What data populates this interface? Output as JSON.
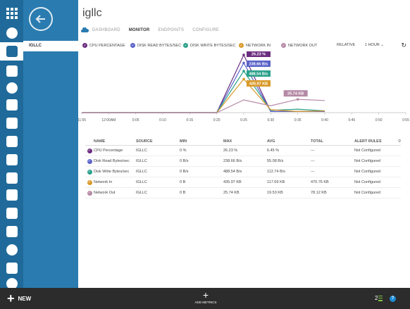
{
  "colors": {
    "rail": "#1f6a9a",
    "subnav": "#2a7bb0",
    "bottombar": "#2c2c2c",
    "cpu": "#6b2d80",
    "read": "#5a62c8",
    "write": "#2aa08a",
    "netin": "#d99a2b",
    "netout": "#b58aa6"
  },
  "rail": {
    "icons": [
      "all-items-icon",
      "web-sites-icon",
      "virtual-machines-icon",
      "mobile-services-icon",
      "cloud-services-icon",
      "sql-databases-icon",
      "storage-icon",
      "hdinsight-icon",
      "media-services-icon",
      "service-bus-icon",
      "visual-studio-icon",
      "cache-icon",
      "biztalk-icon",
      "recovery-services-icon",
      "cdn-icon",
      "settings-icon"
    ]
  },
  "subnav": {
    "item": "IGLLC"
  },
  "page": {
    "title": "igllc"
  },
  "tabs": [
    {
      "label": "DASHBOARD",
      "active": false
    },
    {
      "label": "MONITOR",
      "active": true
    },
    {
      "label": "ENDPOINTS",
      "active": false
    },
    {
      "label": "CONFIGURE",
      "active": false
    }
  ],
  "legend": [
    {
      "label": "CPU PERCENTAGE",
      "color": "#6b2d80"
    },
    {
      "label": "DISK READ BYTES/SEC",
      "color": "#5a62c8"
    },
    {
      "label": "DISK WRITE BYTES/SEC",
      "color": "#2aa08a"
    },
    {
      "label": "NETWORK IN",
      "color": "#d99a2b"
    },
    {
      "label": "NETWORK OUT",
      "color": "#b58aa6"
    }
  ],
  "toolbar": {
    "relative": "RELATIVE",
    "range": "1 HOUR"
  },
  "chart_data": {
    "type": "line",
    "x": [
      "11:55",
      "12:00AM",
      "0:05",
      "0:10",
      "0:15",
      "0:20",
      "0:25",
      "0:30",
      "0:35",
      "0:40",
      "0:45",
      "0:50",
      "0:55"
    ],
    "x_positions": [
      0,
      5,
      10,
      15,
      20,
      25,
      30,
      35,
      40,
      45,
      50,
      55,
      60
    ],
    "series": [
      {
        "name": "CPU PERCENTAGE",
        "color": "#6b2d80",
        "points": [
          [
            25,
            0
          ],
          [
            30,
            1.0
          ],
          [
            35,
            0.02
          ],
          [
            40,
            0.02
          ],
          [
            45,
            0.02
          ]
        ],
        "label": "26.23 %"
      },
      {
        "name": "DISK READ BYTES/SEC",
        "color": "#5a62c8",
        "points": [
          [
            25,
            0
          ],
          [
            30,
            0.86
          ],
          [
            35,
            0.02
          ],
          [
            40,
            0.02
          ],
          [
            45,
            0.02
          ]
        ],
        "label": "238.66 B/s"
      },
      {
        "name": "DISK WRITE BYTES/SEC",
        "color": "#2aa08a",
        "points": [
          [
            25,
            0
          ],
          [
            30,
            0.72
          ],
          [
            35,
            0.04
          ],
          [
            40,
            0.06
          ],
          [
            45,
            0.03
          ]
        ],
        "label": "488.54 B/s"
      },
      {
        "name": "NETWORK IN",
        "color": "#d99a2b",
        "points": [
          [
            25,
            0
          ],
          [
            30,
            0.58
          ],
          [
            35,
            0.05
          ],
          [
            40,
            0.02
          ],
          [
            45,
            0.03
          ]
        ],
        "label": "435.97 KB"
      },
      {
        "name": "NETWORK OUT",
        "color": "#b58aa6",
        "points": [
          [
            25,
            0
          ],
          [
            30,
            0.22
          ],
          [
            35,
            0.12
          ],
          [
            40,
            0.23
          ],
          [
            45,
            0.21
          ]
        ],
        "label": "25.74 KB"
      }
    ],
    "ylim": [
      0,
      1
    ],
    "grid": false,
    "legend": "top"
  },
  "table": {
    "headers": [
      "NAME",
      "SOURCE",
      "MIN",
      "MAX",
      "AVG",
      "TOTAL",
      "ALERT RULES"
    ],
    "rows": [
      {
        "name": "CPU Percentage",
        "source": "IGLLC",
        "min": "0 %",
        "max": "26.23 %",
        "avg": "6.45 %",
        "total": "---",
        "alert": "Not Configured",
        "color": "#6b2d80"
      },
      {
        "name": "Disk Read Bytes/sec",
        "source": "IGLLC",
        "min": "0 B/s",
        "max": "238.66 B/s",
        "avg": "55.08 B/s",
        "total": "---",
        "alert": "Not Configured",
        "color": "#5a62c8"
      },
      {
        "name": "Disk Write Bytes/sec",
        "source": "IGLLC",
        "min": "0 B/s",
        "max": "488.54 B/s",
        "avg": "112.74 B/s",
        "total": "---",
        "alert": "Not Configured",
        "color": "#2aa08a"
      },
      {
        "name": "Network In",
        "source": "IGLLC",
        "min": "0 B",
        "max": "435.97 KB",
        "avg": "117.69 KB",
        "total": "470.76 KB",
        "alert": "Not Configured",
        "color": "#d99a2b"
      },
      {
        "name": "Network Out",
        "source": "IGLLC",
        "min": "0 B",
        "max": "25.74 KB",
        "avg": "19.53 KB",
        "total": "78.12 KB",
        "alert": "Not Configured",
        "color": "#b58aa6"
      }
    ]
  },
  "bottombar": {
    "new_label": "NEW",
    "add_metrics_label": "ADD METRICS",
    "count": "2",
    "help": "?"
  }
}
